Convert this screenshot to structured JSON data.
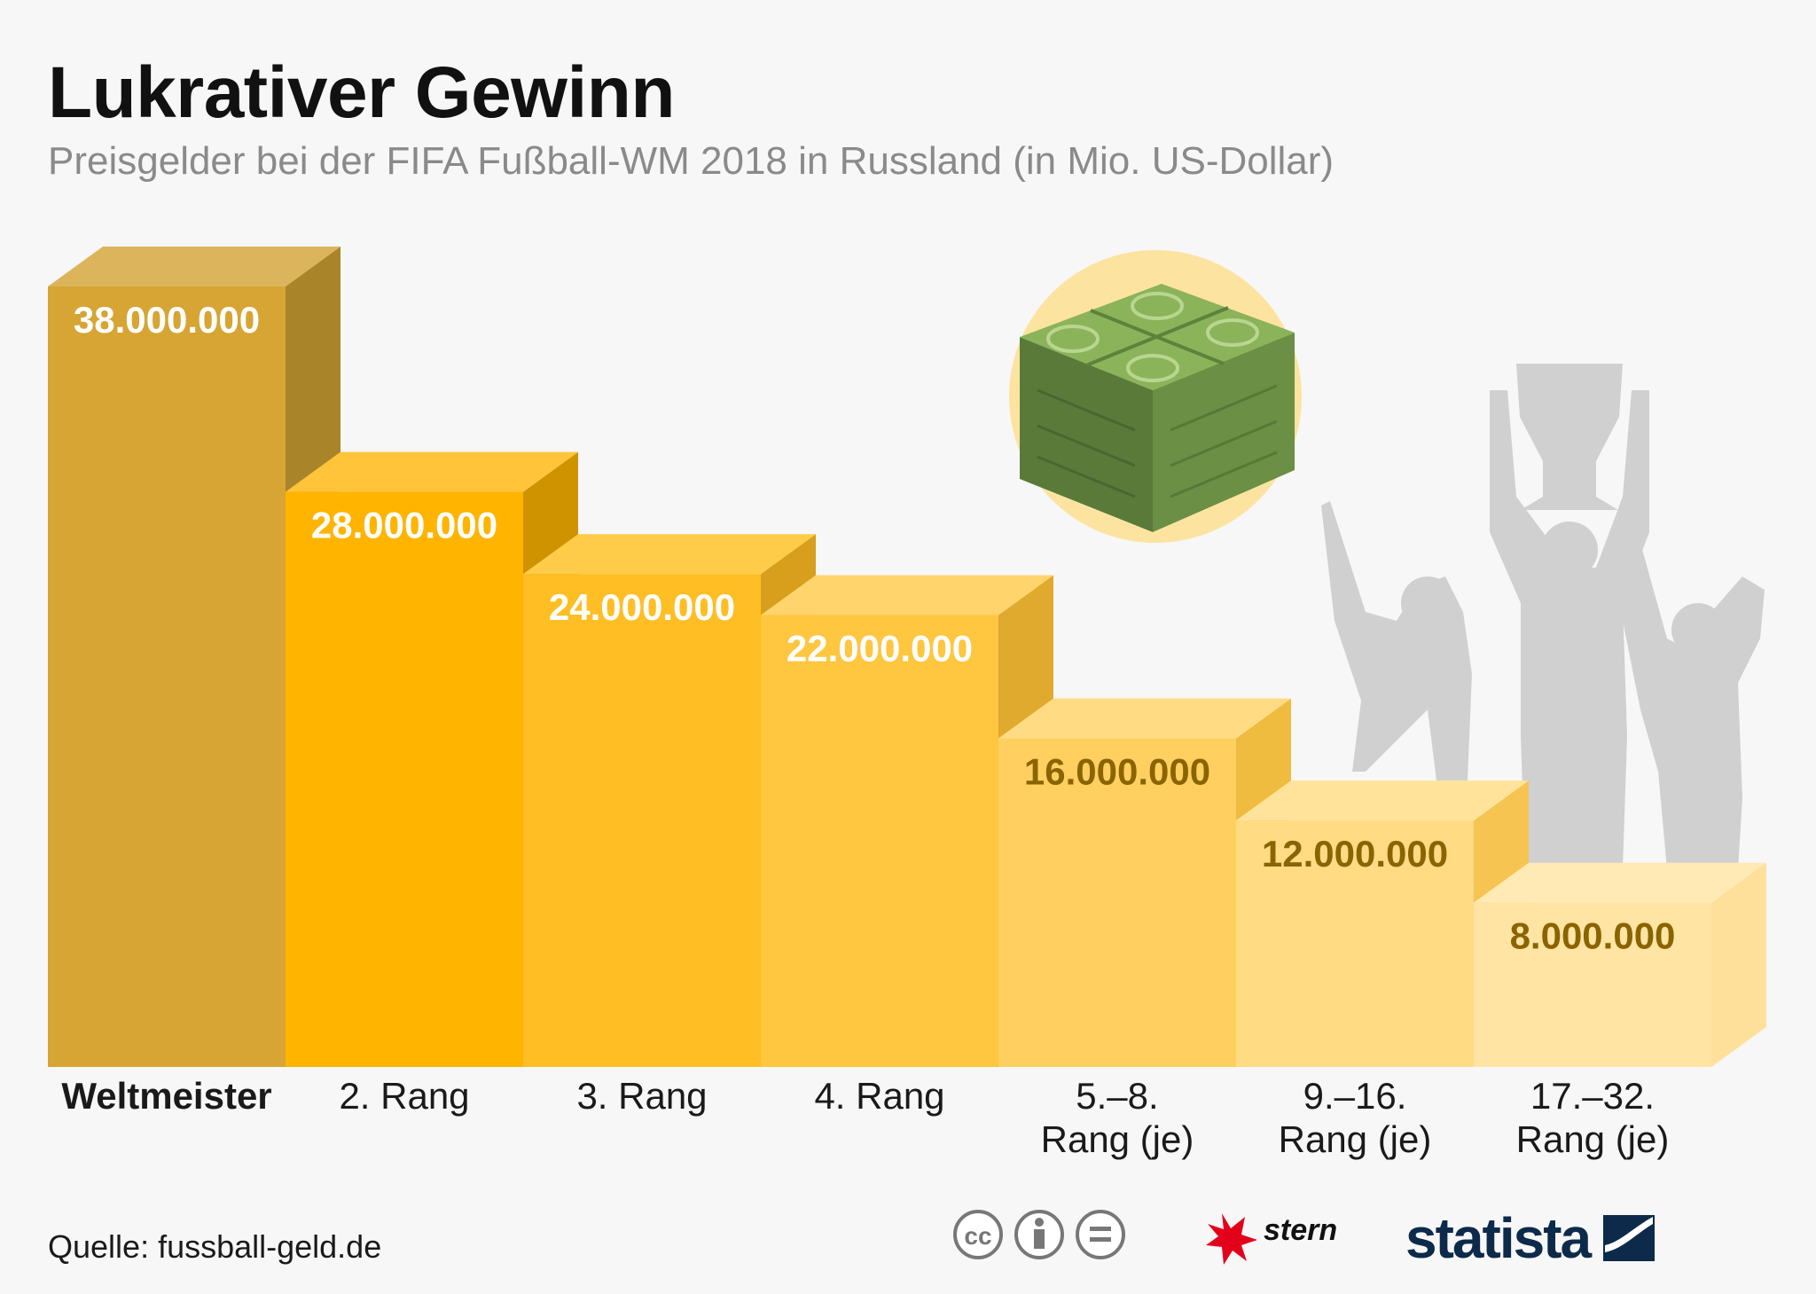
{
  "header": {
    "title": "Lukrativer Gewinn",
    "subtitle": "Preisgelder bei der FIFA Fußball-WM 2018 in Russland (in Mio. US-Dollar)"
  },
  "chart_data": {
    "type": "bar",
    "categories": [
      [
        "Weltmeister"
      ],
      [
        "2. Rang"
      ],
      [
        "3. Rang"
      ],
      [
        "4. Rang"
      ],
      [
        "5.–8.",
        "Rang (je)"
      ],
      [
        "9.–16.",
        "Rang (je)"
      ],
      [
        "17.–32.",
        "Rang (je)"
      ]
    ],
    "values": [
      38000000,
      28000000,
      24000000,
      22000000,
      16000000,
      12000000,
      8000000
    ],
    "value_labels": [
      "38.000.000",
      "28.000.000",
      "24.000.000",
      "22.000.000",
      "16.000.000",
      "12.000.000",
      "8.000.000"
    ],
    "style": "3d-staircase",
    "colors": {
      "front": [
        "#d6a534",
        "#ffb400",
        "#ffbe24",
        "#ffc63f",
        "#ffd060",
        "#ffdb84",
        "#ffe4a3"
      ],
      "side": [
        "#a98429",
        "#cf9300",
        "#d79f1b",
        "#e0aa2e",
        "#f0bc3f",
        "#f5c451",
        "#ffe09a"
      ],
      "top": [
        "#dcb45c",
        "#ffc43a",
        "#ffcc4a",
        "#ffd46c",
        "#ffdc84",
        "#ffe39a",
        "#ffe9b4"
      ],
      "label": [
        "#ffffff",
        "#ffffff",
        "#ffffff",
        "#ffffff",
        "#8a6400",
        "#8a6400",
        "#8a6400"
      ]
    }
  },
  "footer": {
    "source": "Quelle: fussball-geld.de",
    "cc_icons": [
      "cc-icon",
      "by-icon",
      "nd-icon"
    ],
    "brand_stern": "stern",
    "brand_statista": "statista"
  }
}
